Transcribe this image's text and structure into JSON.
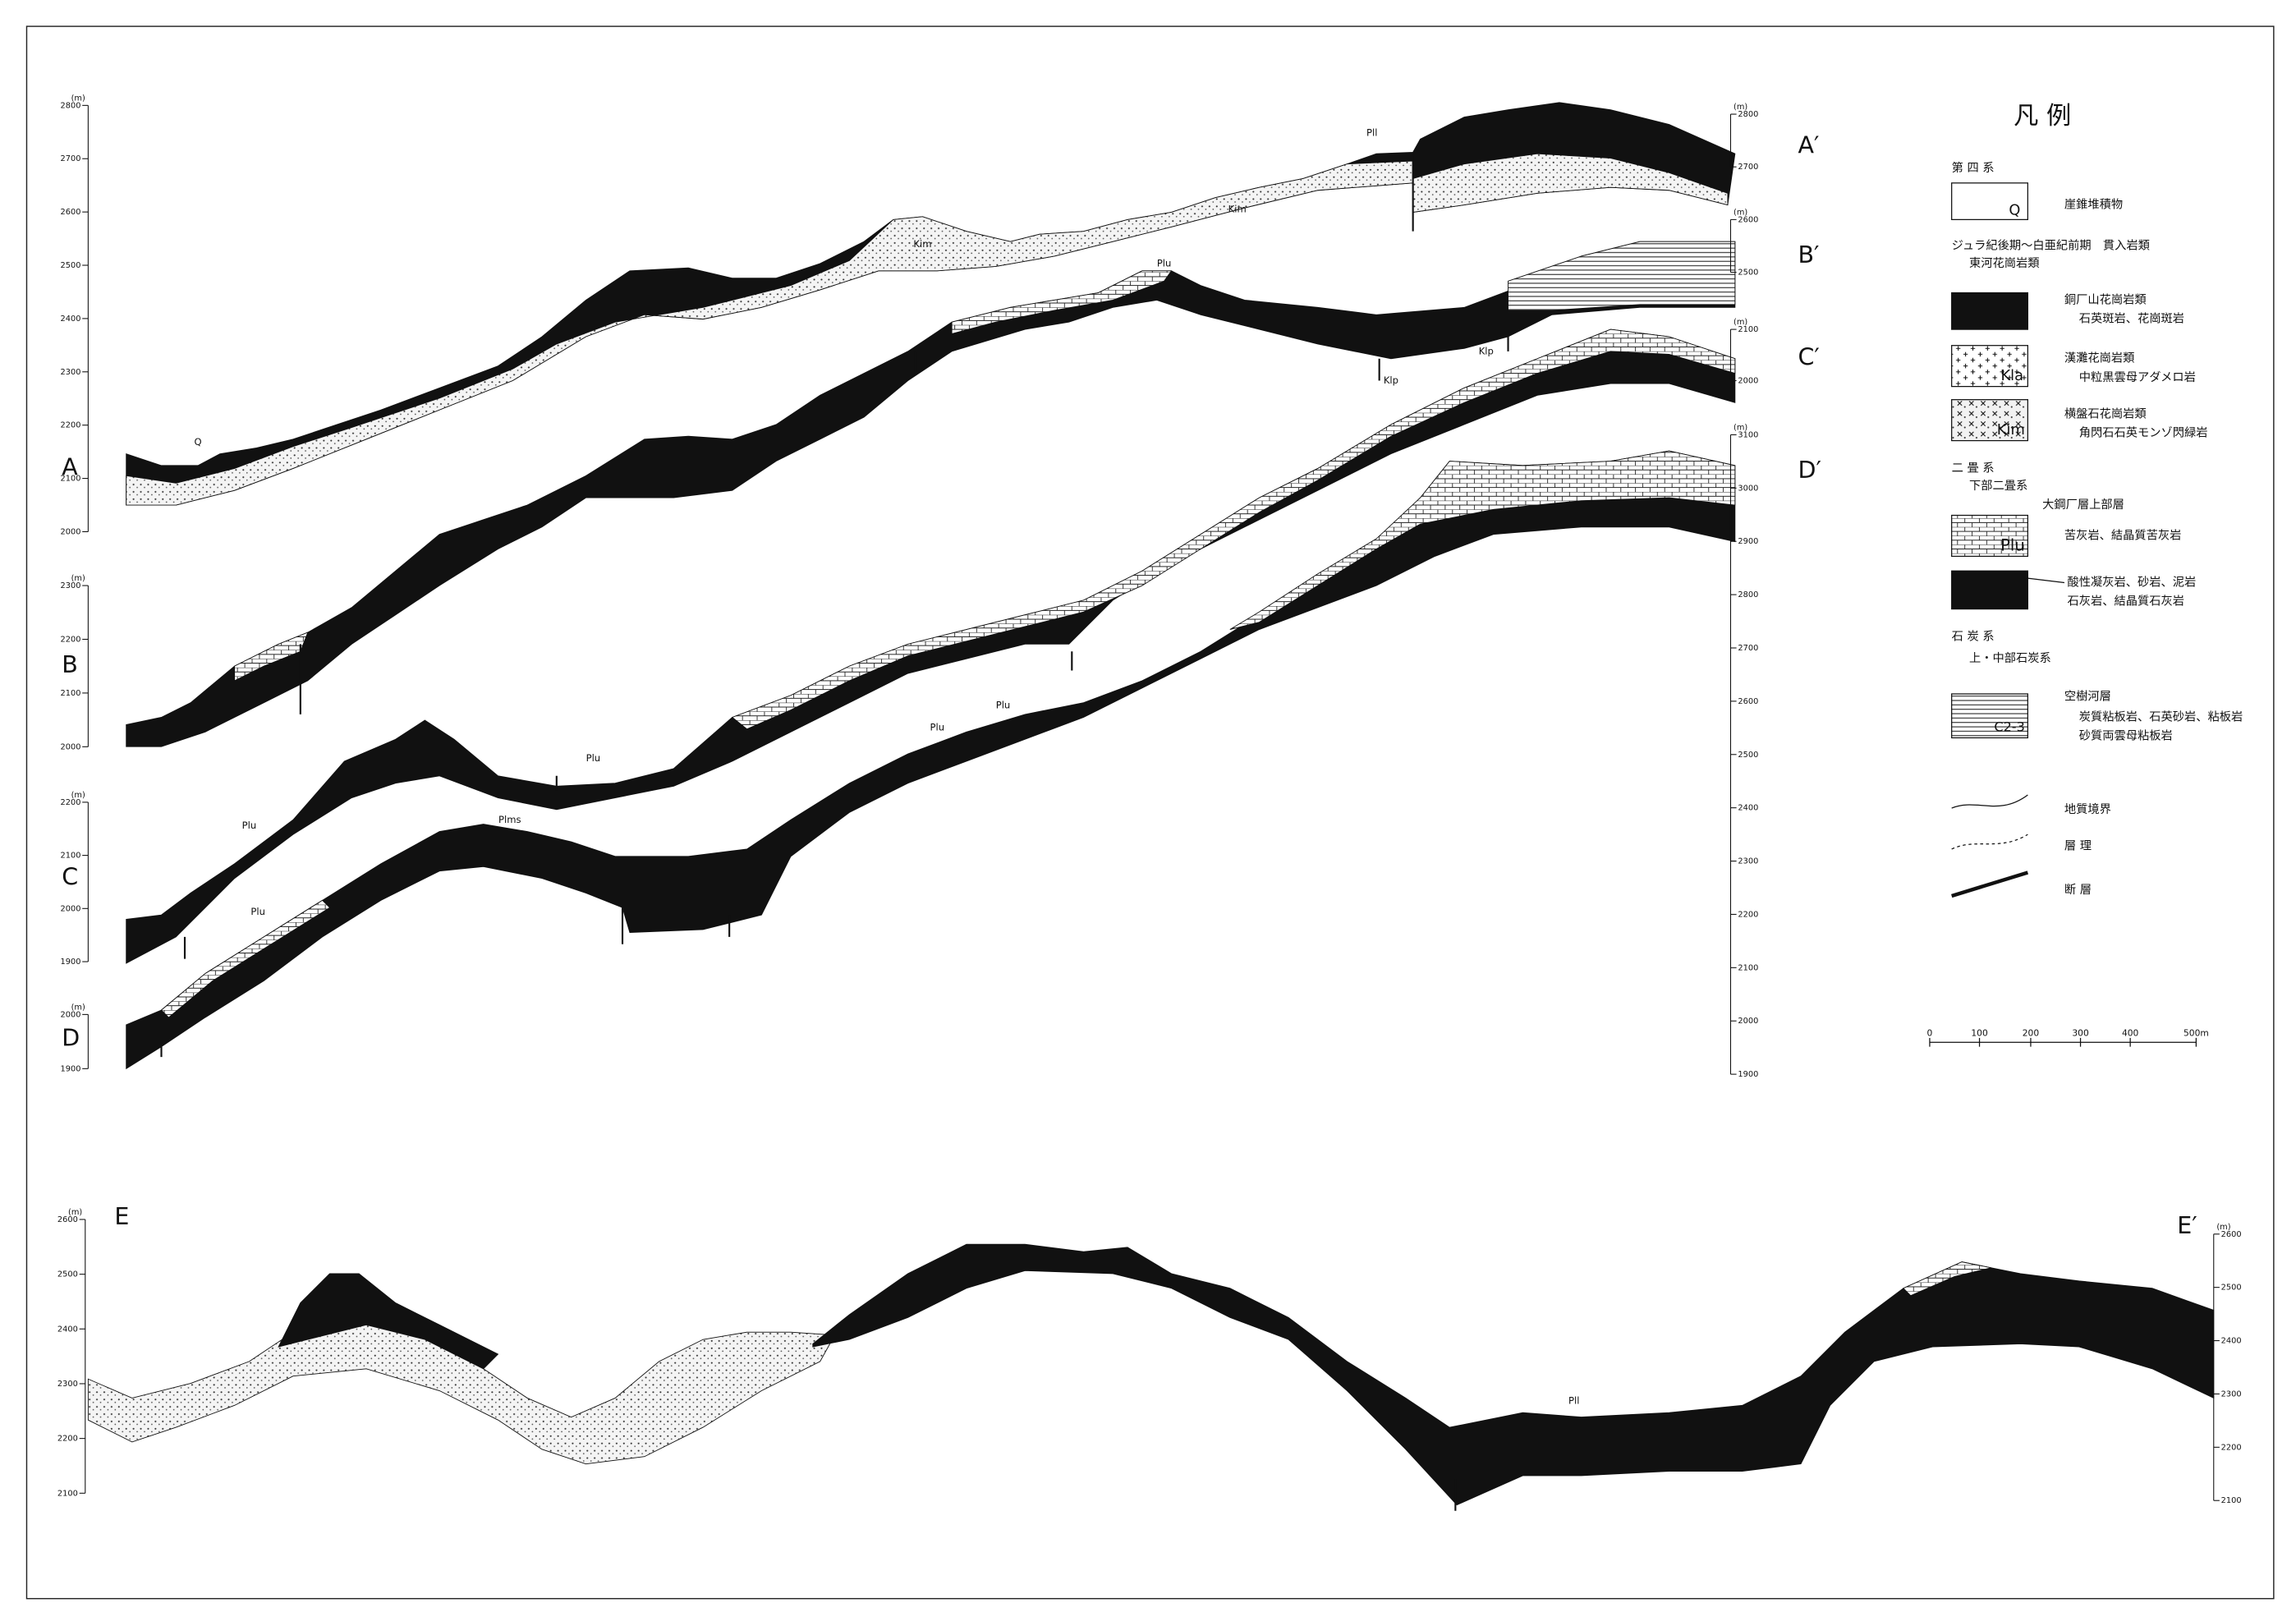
{
  "unit": "(m)",
  "sections": [
    {
      "label": "A",
      "end_label": "A′",
      "left_ticks": [
        2800,
        2700,
        2600,
        2500,
        2400,
        2300,
        2200,
        2100,
        2000
      ],
      "right_ticks": [
        2800,
        2700
      ]
    },
    {
      "label": "B",
      "end_label": "B′",
      "left_ticks": [
        2300,
        2200,
        2100,
        2000
      ],
      "right_ticks": [
        2600,
        2500
      ]
    },
    {
      "label": "C",
      "end_label": "C′",
      "left_ticks": [
        2200,
        2100,
        2000,
        1900
      ],
      "right_ticks": [
        2100,
        2000
      ]
    },
    {
      "label": "D",
      "end_label": "D′",
      "left_ticks": [
        2000,
        1900
      ],
      "right_ticks": [
        3100,
        3000,
        2900,
        2800,
        2700,
        2600,
        2500,
        2400,
        2300,
        2200,
        2100,
        2000,
        1900
      ]
    },
    {
      "label": "E",
      "end_label": "E′",
      "left_ticks": [
        2600,
        2500,
        2400,
        2300,
        2200,
        2100
      ],
      "right_ticks": [
        2600,
        2500,
        2400,
        2300,
        2200,
        2100
      ]
    }
  ],
  "annotations": [
    "Q",
    "Pll",
    "Kim",
    "Kim",
    "Plu",
    "Klp",
    "Klp",
    "Plu",
    "Plu",
    "Plms",
    "Plu",
    "Plu",
    "Plu",
    "Pll"
  ],
  "legend": {
    "title": "凡 例",
    "groups": [
      {
        "heading": "第 四 系",
        "items": [
          {
            "symbol": "Q",
            "lines": [
              "崖錐堆積物"
            ]
          }
        ]
      },
      {
        "heading": "ジュラ紀後期～白亜紀前期　貫入岩類",
        "subheading": "東河花崗岩類",
        "items": [
          {
            "lines": [
              "銅厂山花崗岩類",
              "石英斑岩、花崗斑岩"
            ]
          },
          {
            "symbol": "Kla",
            "lines": [
              "漢灘花崗岩類",
              "中粒黒雲母アダメロ岩"
            ]
          },
          {
            "symbol": "Kim",
            "lines": [
              "横盤石花崗岩類",
              "角閃石石英モンゾ閃緑岩"
            ]
          }
        ]
      },
      {
        "heading": "二 畳 系",
        "subheading": "下部二畳系",
        "items": [
          {
            "symbol": "Plu",
            "lines": [
              "大鋼厂層上部層",
              "苦灰岩、結晶質苦灰岩"
            ]
          },
          {
            "lines": [
              "酸性凝灰岩、砂岩、泥岩",
              "石灰岩、結晶質石灰岩"
            ]
          }
        ]
      },
      {
        "heading": "石 炭 系",
        "subheading": "上・中部石炭系",
        "items": [
          {
            "symbol": "C2-3",
            "lines": [
              "空樹河層",
              "炭質粘板岩、石英砂岩、粘板岩",
              "砂質両雲母粘板岩"
            ]
          }
        ]
      }
    ],
    "line_types": [
      "地質境界",
      "層 理",
      "断 層"
    ],
    "scale": [
      "0",
      "100",
      "200",
      "300",
      "400",
      "500m"
    ]
  }
}
